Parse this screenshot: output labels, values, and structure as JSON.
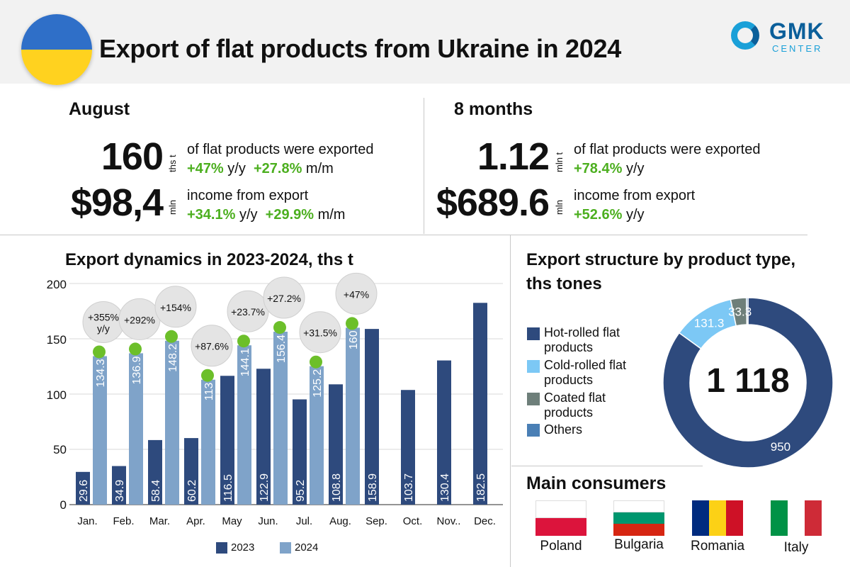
{
  "title": "Export of flat products from Ukraine in 2024",
  "logo": {
    "word": "GMK",
    "sub": "CENTER"
  },
  "august": {
    "title": "August",
    "volume": {
      "value": "160",
      "unit": "ths t",
      "text": "of flat products were exported",
      "yy": "+47%",
      "yy_unit": "y/y",
      "mm": "+27.8%",
      "mm_unit": "m/m"
    },
    "income": {
      "value": "$98,4",
      "unit": "mln",
      "text": "income from export",
      "yy": "+34.1%",
      "yy_unit": "y/y",
      "mm": "+29.9%",
      "mm_unit": "m/m"
    }
  },
  "eight_months": {
    "title": "8 months",
    "volume": {
      "value": "1.12",
      "unit": "mln t",
      "text": "of flat products were exported",
      "yy": "+78.4%",
      "yy_unit": "y/y"
    },
    "income": {
      "value": "$689.6",
      "unit": "mln",
      "text": "income from export",
      "yy": "+52.6%",
      "yy_unit": "y/y"
    }
  },
  "colors": {
    "s2023": "#2e4a7d",
    "s2024": "#7fa3c9",
    "growth": "#6cbf2a",
    "hot": "#2e4a7d",
    "cold": "#7cc8f5",
    "coated": "#6e7f7a",
    "others": "#4a7fb5"
  },
  "chart_data": [
    {
      "type": "bar",
      "title": "Export dynamics in 2023-2024, ths t",
      "categories": [
        "Jan.",
        "Feb.",
        "Mar.",
        "Apr.",
        "May",
        "Jun.",
        "Jul.",
        "Aug.",
        "Sep.",
        "Oct.",
        "Nov..",
        "Dec."
      ],
      "series": [
        {
          "name": "2023",
          "values": [
            29.6,
            34.9,
            58.4,
            60.2,
            116.5,
            122.9,
            95.2,
            108.8,
            158.9,
            103.7,
            130.4,
            182.5
          ]
        },
        {
          "name": "2024",
          "values": [
            134.3,
            136.9,
            148.2,
            113,
            144.1,
            156.4,
            125.2,
            160,
            null,
            null,
            null,
            null
          ]
        }
      ],
      "value_labels_2024": [
        "134.3",
        "136.9",
        "148.2",
        "113",
        "144.1",
        "156.4",
        "125.2",
        "160"
      ],
      "value_labels_2023": [
        "29.6",
        "34.9",
        "58.4",
        "60.2",
        "116.5",
        "122.9",
        "95.2",
        "108.8",
        "158.9",
        "103.7",
        "130.4",
        "182.5"
      ],
      "growth_labels": [
        "+355%",
        "+292%",
        "+154%",
        "+87.6%",
        "+23.7%",
        "+27.2%",
        "+31.5%",
        "+47%"
      ],
      "growth_sub": [
        "y/y",
        "",
        "",
        "",
        "",
        "",
        "",
        ""
      ],
      "yticks": [
        "0",
        "50",
        "100",
        "150",
        "200"
      ],
      "ylim": [
        0,
        200
      ],
      "legend": [
        "2023",
        "2024"
      ]
    },
    {
      "type": "pie",
      "title_line1": "Export structure by product type,",
      "title_line2": "ths tones",
      "total_label": "1 118",
      "slices": [
        {
          "name": "Hot-rolled flat products",
          "value": 950,
          "label": "950"
        },
        {
          "name": "Cold-rolled flat products",
          "value": 131.3,
          "label": "131.3"
        },
        {
          "name": "Coated flat products",
          "value": 33.3,
          "label": "33.3"
        },
        {
          "name": "Others",
          "value": 3.4,
          "label": ""
        }
      ],
      "legend_lines": [
        [
          "Hot-rolled flat",
          "products"
        ],
        [
          "Cold-rolled flat",
          "products"
        ],
        [
          "Coated flat",
          "products"
        ],
        [
          "Others",
          ""
        ]
      ]
    }
  ],
  "consumers": {
    "title": "Main consumers",
    "countries": [
      "Poland",
      "Bulgaria",
      "Romania",
      "Italy"
    ]
  }
}
